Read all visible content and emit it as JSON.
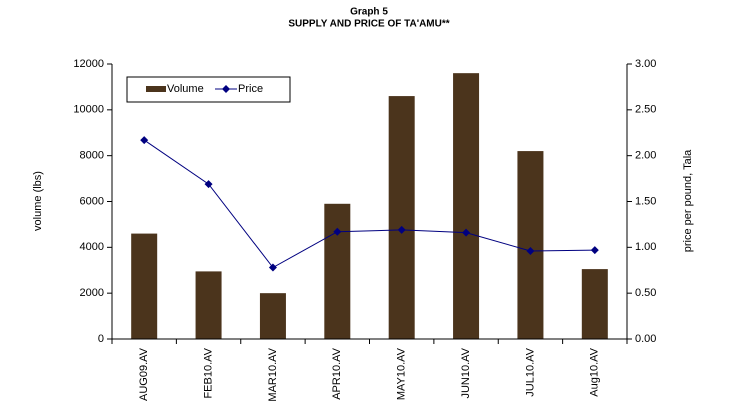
{
  "chart_data": {
    "type": "bar",
    "title": "Graph 5",
    "subtitle": "SUPPLY AND PRICE OF TA'AMU**",
    "y_label": "volume (lbs)",
    "y2_label": "price per pound, Tala",
    "categories": [
      "AUG09.AV",
      "FEB10.AV",
      "MAR10.AV",
      "APR10.AV",
      "MAY10.AV",
      "JUN10.AV",
      "JUL10.AV",
      "Aug10.AV"
    ],
    "series": [
      {
        "name": "Volume",
        "type": "bar",
        "color": "#4b341c",
        "values": [
          4600,
          2950,
          2000,
          5900,
          10600,
          11600,
          8200,
          3050
        ]
      },
      {
        "name": "Price",
        "type": "line",
        "axis": "y2",
        "color": "#000080",
        "values": [
          2.17,
          1.69,
          0.78,
          1.17,
          1.19,
          1.16,
          0.96,
          0.97
        ]
      }
    ],
    "ylim": [
      0,
      12000
    ],
    "yticks": [
      0,
      2000,
      4000,
      6000,
      8000,
      10000,
      12000
    ],
    "y2lim": [
      0,
      3
    ],
    "y2ticks": [
      {
        "value": 0,
        "label": "0.00"
      },
      {
        "value": 0.5,
        "label": "0.50"
      },
      {
        "value": 1,
        "label": "1.00"
      },
      {
        "value": 1.5,
        "label": "1.50"
      },
      {
        "value": 2,
        "label": "2.00"
      },
      {
        "value": 2.5,
        "label": "2.50"
      },
      {
        "value": 3,
        "label": "3.00"
      }
    ],
    "legend": "upper left",
    "grid": false
  }
}
